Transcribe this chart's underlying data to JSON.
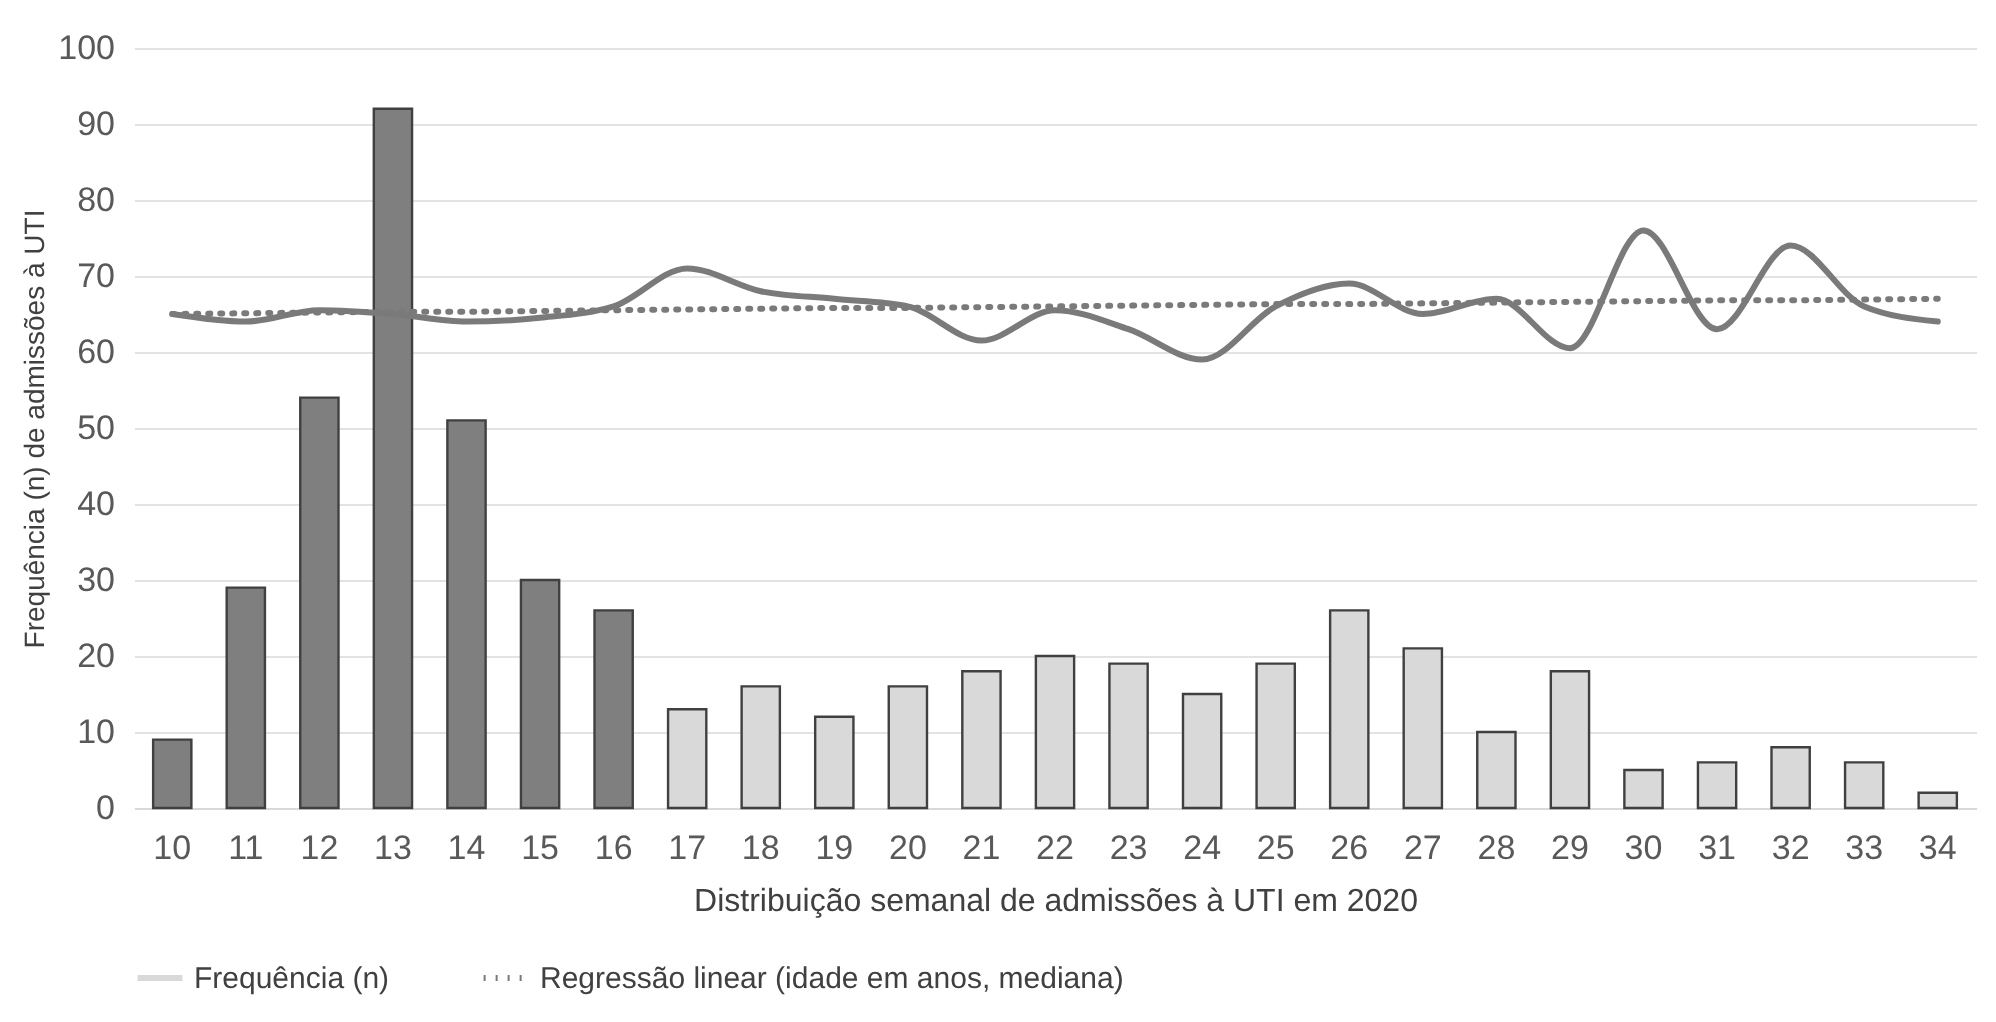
{
  "chart_data": {
    "type": "bar",
    "xlabel": "Distribuição semanal de admissões à UTI em 2020",
    "ylabel": "Frequência (n) de admissões à UTI",
    "categories": [
      "10",
      "11",
      "12",
      "13",
      "14",
      "15",
      "16",
      "17",
      "18",
      "19",
      "20",
      "21",
      "22",
      "23",
      "24",
      "25",
      "26",
      "27",
      "28",
      "29",
      "30",
      "31",
      "32",
      "33",
      "34"
    ],
    "series": [
      {
        "name": "Frequência (n)",
        "type": "bar",
        "color": "#d9d9d9",
        "colors": [
          "#7f7f7f",
          "#7f7f7f",
          "#7f7f7f",
          "#7f7f7f",
          "#7f7f7f",
          "#7f7f7f",
          "#7f7f7f",
          "#d9d9d9",
          "#d9d9d9",
          "#d9d9d9",
          "#d9d9d9",
          "#d9d9d9",
          "#d9d9d9",
          "#d9d9d9",
          "#d9d9d9",
          "#d9d9d9",
          "#d9d9d9",
          "#d9d9d9",
          "#d9d9d9",
          "#d9d9d9",
          "#d9d9d9",
          "#d9d9d9",
          "#d9d9d9",
          "#d9d9d9",
          "#d9d9d9"
        ],
        "values": [
          9,
          29,
          54,
          92,
          51,
          30,
          26,
          13,
          16,
          12,
          16,
          18,
          20,
          19,
          15,
          19,
          26,
          21,
          10,
          18,
          5,
          6,
          8,
          6,
          2
        ]
      },
      {
        "type": "line",
        "color": "#7a7a7a",
        "line_style": "solid",
        "values": [
          65,
          64,
          65.5,
          65,
          64,
          64.5,
          66,
          71,
          68,
          67,
          66,
          61.5,
          65.5,
          63,
          59,
          66,
          69,
          65,
          67,
          60.5,
          76,
          63,
          74,
          66,
          64
        ]
      },
      {
        "name": "Regressão linear (idade em anos, mediana)",
        "type": "line",
        "color": "#7a7a7a",
        "line_style": "dotted",
        "values": [
          65,
          65.1,
          65.2,
          65.3,
          65.3,
          65.4,
          65.5,
          65.6,
          65.7,
          65.8,
          65.8,
          65.9,
          66,
          66.1,
          66.2,
          66.3,
          66.3,
          66.4,
          66.5,
          66.6,
          66.7,
          66.8,
          66.8,
          66.9,
          67
        ]
      }
    ],
    "ylim": [
      0,
      100
    ],
    "yticks": [
      0,
      10,
      20,
      30,
      40,
      50,
      60,
      70,
      80,
      90,
      100
    ],
    "grid": "y",
    "legend": "bottom"
  }
}
